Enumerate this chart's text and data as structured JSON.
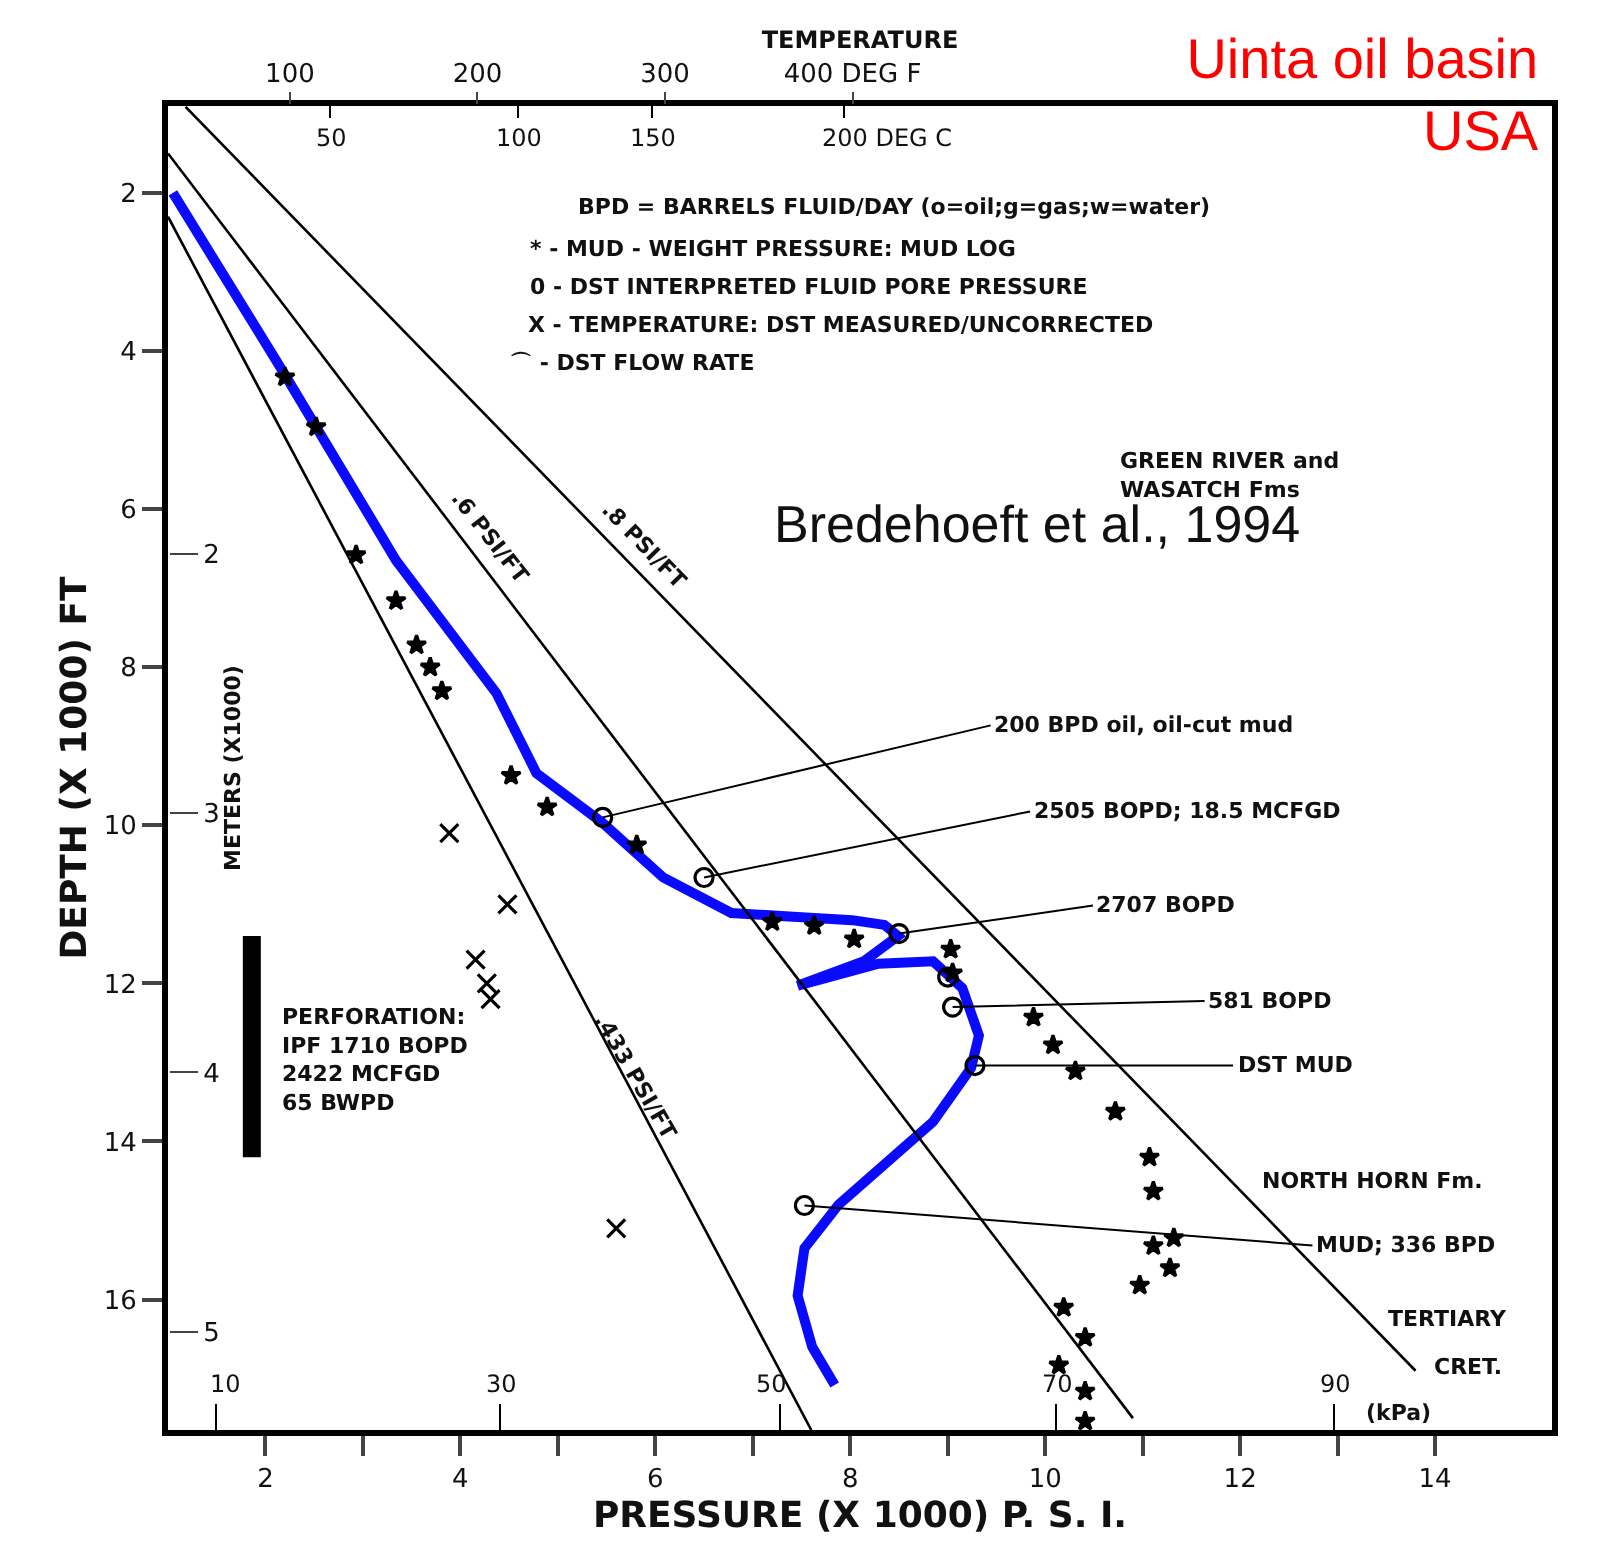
{
  "chart_data": {
    "type": "line",
    "title": "Uinta oil basin\nUSA",
    "xlabel": "PRESSURE (X 1000) P. S. I.",
    "ylabel": "DEPTH (X 1000) FT",
    "y2label": "METERS (X1000)",
    "x2label": "TEMPERATURE",
    "xlim": [
      1.0,
      15.2
    ],
    "xticks": [
      2,
      {
        "value": 3,
        "label": null
      },
      4,
      {
        "value": 5,
        "label": null
      },
      6,
      {
        "value": 7,
        "label": null
      },
      8,
      {
        "value": 9,
        "label": null
      },
      10,
      {
        "value": 11,
        "label": null
      },
      12,
      {
        "value": 13,
        "label": null
      },
      14
    ],
    "ylim": [
      17.65,
      0.9
    ],
    "yticks": [
      2,
      4,
      6,
      8,
      10,
      12,
      14,
      16
    ],
    "y2lim": [
      5.38,
      0.27
    ],
    "y2ticks": [
      2,
      3,
      4,
      5
    ],
    "x2lim": [
      35,
      773
    ],
    "x2ticks": [
      100,
      200,
      300,
      {
        "value": 400,
        "label": "400 DEG F"
      }
    ],
    "series": [
      {
        "color": "#0a0aff",
        "marker": "none",
        "x": [
          1.05,
          2.2,
          3.34,
          4.37,
          4.78,
          5.46,
          6.08,
          6.78,
          7.46,
          8.02,
          8.35,
          8.49,
          8.14,
          7.46,
          8.29,
          8.85,
          9.15,
          9.32,
          9.24,
          8.85,
          8.35,
          7.88,
          7.53,
          7.46,
          7.61,
          7.84
        ],
        "values": [
          2.0,
          4.3,
          6.65,
          8.33,
          9.34,
          9.97,
          10.66,
          11.11,
          11.16,
          11.2,
          11.26,
          11.4,
          11.72,
          12.03,
          11.75,
          11.72,
          12.06,
          12.66,
          13.07,
          13.75,
          14.29,
          14.8,
          15.35,
          15.95,
          16.6,
          17.08
        ]
      },
      {
        "color": "#000000",
        "marker": "none",
        "x": [
          1.0,
          7.6
        ],
        "values": [
          2.3,
          17.65
        ]
      },
      {
        "color": "#000000",
        "marker": "none",
        "x": [
          1.0,
          10.9
        ],
        "values": [
          1.5,
          17.5
        ]
      },
      {
        "color": "#000000",
        "marker": "none",
        "x": [
          1.18,
          13.8
        ],
        "values": [
          0.91,
          16.9
        ]
      },
      {
        "color": "#000000",
        "marker": "none",
        "x": [
          1.86,
          1.86
        ],
        "values": [
          11.4,
          14.2
        ]
      },
      {
        "type": "scatter",
        "color": "#000000",
        "marker": "star",
        "x": [
          2.2,
          2.52,
          2.93,
          3.34,
          3.55,
          3.69,
          3.81,
          4.52,
          4.89,
          5.81,
          7.2,
          7.63,
          8.04,
          9.03,
          9.05,
          9.88,
          10.08,
          10.31,
          10.72,
          11.07,
          11.11,
          11.11,
          11.32,
          11.28,
          10.97,
          10.19,
          10.41,
          10.14,
          10.41,
          10.41
        ],
        "values": [
          4.33,
          4.96,
          6.58,
          7.16,
          7.72,
          8.0,
          8.3,
          9.37,
          9.77,
          10.25,
          11.22,
          11.27,
          11.44,
          11.57,
          11.87,
          12.43,
          12.78,
          13.11,
          13.62,
          14.2,
          14.63,
          15.32,
          15.22,
          15.6,
          15.82,
          16.1,
          16.48,
          16.83,
          17.16,
          17.54
        ]
      },
      {
        "type": "scatter",
        "color": "#000000",
        "marker": "circle",
        "x": [
          5.46,
          6.5,
          8.5,
          9.0,
          9.05,
          9.28,
          7.53
        ],
        "values": [
          9.9,
          10.66,
          11.37,
          11.92,
          12.3,
          13.04,
          14.81
        ]
      },
      {
        "type": "scatter",
        "color": "#000000",
        "marker": "cross",
        "axis": "x2",
        "x": [
          185,
          216,
          199,
          205,
          207,
          274
        ],
        "values": [
          10.1,
          11.0,
          11.7,
          12.0,
          12.2,
          15.1
        ]
      }
    ],
    "annotations": [
      ".433 PSI/FT",
      ".6 PSI/FT",
      ".8 PSI/FT",
      {
        "text": "200 BPD oil, oil-cut mud",
        "x": 5.46,
        "y": 9.9
      },
      {
        "text": "2505 BOPD; 18.5 MCFGD",
        "x": 6.5,
        "y": 10.66
      },
      {
        "text": "2707 BOPD",
        "x": 8.5,
        "y": 11.37
      },
      {
        "text": "581 BOPD",
        "x": 9.05,
        "y": 12.3
      },
      {
        "text": "DST MUD",
        "x": 9.28,
        "y": 13.04
      },
      {
        "text": "MUD; 336 BPD",
        "x": 7.53,
        "y": 14.81
      },
      "BPD = BARRELS FLUID/DAY (o=oil;g=gas;w=water)",
      "* - MUD - WEIGHT PRESSURE: MUD LOG",
      "0 - DST INTERPRETED FLUID PORE PRESSURE",
      "X - TEMPERATURE: DST MEASURED/UNCORRECTED",
      "⌒ - DST FLOW RATE",
      "GREEN RIVER and\nWASATCH Fms",
      "Bredehoeft et al., 1994",
      "NORTH HORN Fm.",
      "TERTIARY",
      "CRET.",
      "PERFORATION:\nIPF 1710 BOPD\n2422 MCFGD\n65 BWPD",
      "50",
      "100",
      "150",
      "200 DEG C",
      "10",
      "30",
      "50",
      "70",
      "90",
      "(kPa)"
    ]
  }
}
